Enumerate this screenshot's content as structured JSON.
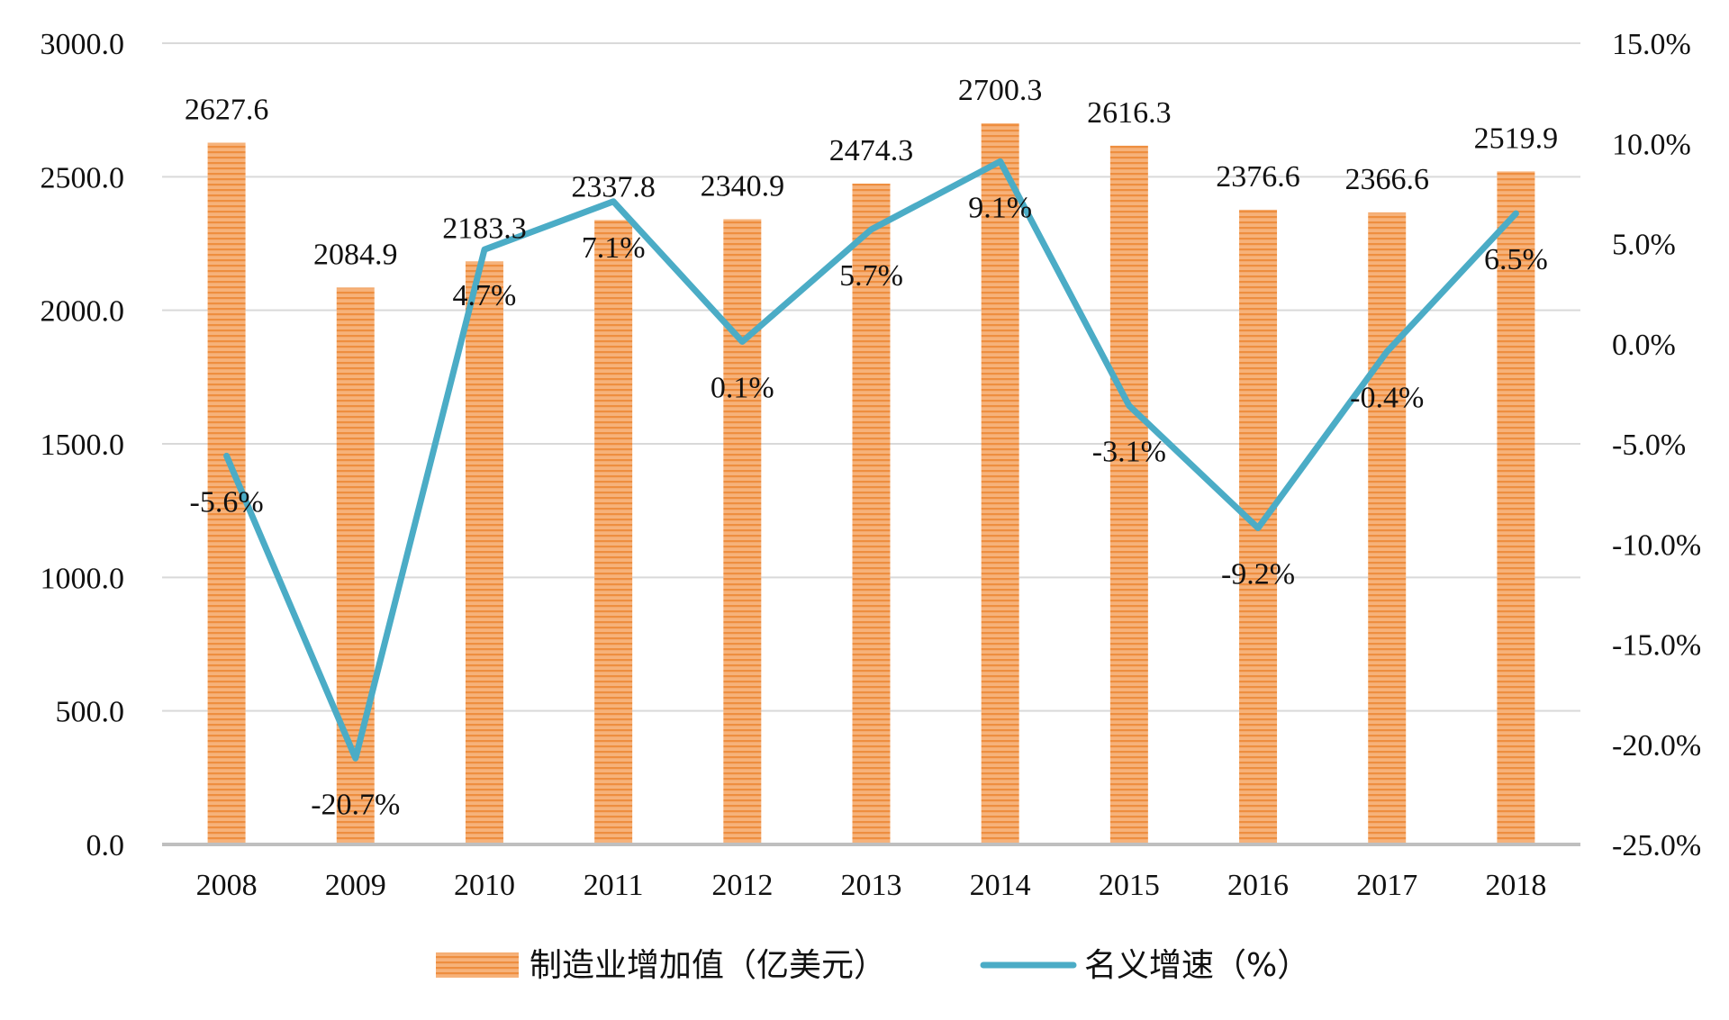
{
  "chart_data": {
    "type": "bar",
    "categories": [
      "2008",
      "2009",
      "2010",
      "2011",
      "2012",
      "2013",
      "2014",
      "2015",
      "2016",
      "2017",
      "2018"
    ],
    "series": [
      {
        "name": "制造业增加值（亿美元）",
        "type": "bar",
        "axis": "left",
        "values": [
          2627.6,
          2084.9,
          2183.3,
          2337.8,
          2340.9,
          2474.3,
          2700.3,
          2616.3,
          2376.6,
          2366.6,
          2519.9
        ],
        "labels": [
          "2627.6",
          "2084.9",
          "2183.3",
          "2337.8",
          "2340.9",
          "2474.3",
          "2700.3",
          "2616.3",
          "2376.6",
          "2366.6",
          "2519.9"
        ],
        "color": "#F4A460"
      },
      {
        "name": "名义增速（%）",
        "type": "line",
        "axis": "right",
        "values": [
          -5.6,
          -20.7,
          4.7,
          7.1,
          0.1,
          5.7,
          9.1,
          -3.1,
          -9.2,
          -0.4,
          6.5
        ],
        "labels": [
          "-5.6%",
          "-20.7%",
          "4.7%",
          "7.1%",
          "0.1%",
          "5.7%",
          "9.1%",
          "-3.1%",
          "-9.2%",
          "-0.4%",
          "6.5%"
        ],
        "color": "#4BACC6"
      }
    ],
    "y_left": {
      "min": 0,
      "max": 3000,
      "ticks": [
        "0.0",
        "500.0",
        "1000.0",
        "1500.0",
        "2000.0",
        "2500.0",
        "3000.0"
      ]
    },
    "y_right": {
      "min": -25,
      "max": 15,
      "ticks": [
        "-25.0%",
        "-20.0%",
        "-15.0%",
        "-10.0%",
        "-5.0%",
        "0.0%",
        "5.0%",
        "10.0%",
        "15.0%"
      ]
    },
    "grid": true,
    "legend_position": "bottom",
    "gridline_color": "#D9D9D9",
    "axis_color": "#BFBFBF"
  }
}
